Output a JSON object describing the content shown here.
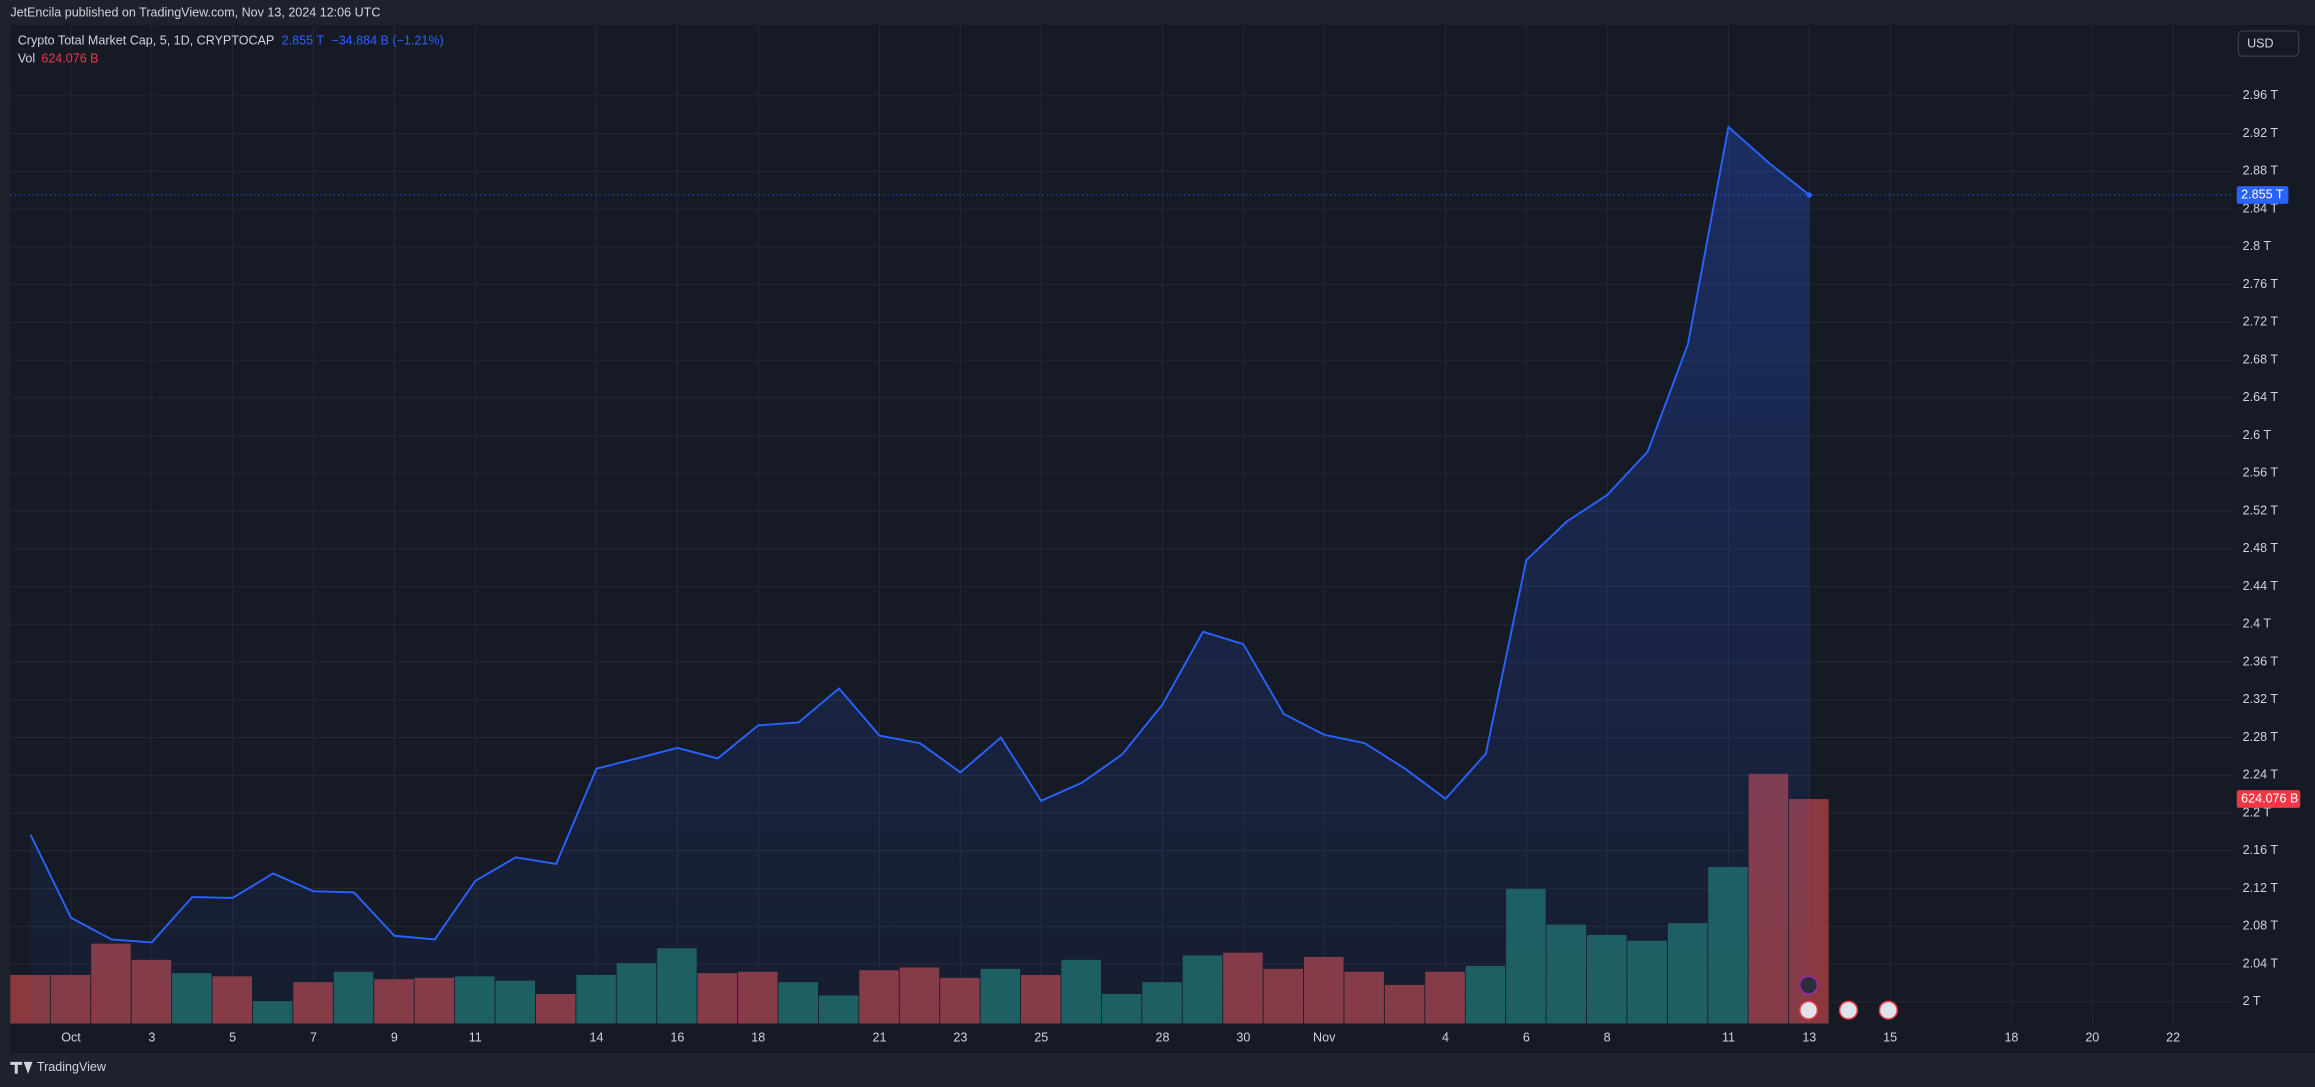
{
  "header": {
    "published": "JetEncila published on TradingView.com, Nov 13, 2024 12:06 UTC",
    "currency": "USD",
    "brand": "TradingView"
  },
  "chart_data": {
    "type": "line",
    "title": "Crypto Total Market Cap, 5, 1D, CRYPTOCAP",
    "last_value_label": "2.855 T",
    "change": "−34.884 B (−1.21%)",
    "x": [
      "2024-09-30",
      "2024-10-01",
      "2024-10-02",
      "2024-10-03",
      "2024-10-04",
      "2024-10-05",
      "2024-10-06",
      "2024-10-07",
      "2024-10-08",
      "2024-10-09",
      "2024-10-10",
      "2024-10-11",
      "2024-10-12",
      "2024-10-13",
      "2024-10-14",
      "2024-10-15",
      "2024-10-16",
      "2024-10-17",
      "2024-10-18",
      "2024-10-19",
      "2024-10-20",
      "2024-10-21",
      "2024-10-22",
      "2024-10-23",
      "2024-10-24",
      "2024-10-25",
      "2024-10-26",
      "2024-10-27",
      "2024-10-28",
      "2024-10-29",
      "2024-10-30",
      "2024-10-31",
      "2024-11-01",
      "2024-11-02",
      "2024-11-03",
      "2024-11-04",
      "2024-11-05",
      "2024-11-06",
      "2024-11-07",
      "2024-11-08",
      "2024-11-09",
      "2024-11-10",
      "2024-11-11",
      "2024-11-12",
      "2024-11-13"
    ],
    "series": [
      {
        "color": "#2962ff",
        "values": [
          2.177,
          2.089,
          2.066,
          2.063,
          2.111,
          2.11,
          2.136,
          2.117,
          2.116,
          2.07,
          2.066,
          2.128,
          2.153,
          2.146,
          2.247,
          2.258,
          2.269,
          2.258,
          2.293,
          2.296,
          2.332,
          2.282,
          2.274,
          2.243,
          2.28,
          2.213,
          2.232,
          2.262,
          2.315,
          2.392,
          2.379,
          2.305,
          2.283,
          2.274,
          2.247,
          2.215,
          2.263,
          2.468,
          2.509,
          2.537,
          2.583,
          2.697,
          2.927,
          2.889,
          2.855
        ]
      }
    ],
    "volume": {
      "name": "Vol",
      "last_value_label": "624.076 B",
      "values": [
        135,
        135,
        222,
        177,
        140,
        131,
        62,
        115,
        144,
        123,
        127,
        131,
        119,
        82,
        135,
        168,
        209,
        140,
        144,
        115,
        78,
        148,
        156,
        127,
        152,
        135,
        177,
        82,
        115,
        189,
        197,
        152,
        185,
        144,
        107,
        144,
        160,
        374,
        275,
        246,
        230,
        279,
        435,
        694,
        624.076
      ],
      "colors": [
        "#8a3a3f",
        "#8a3a3f",
        "#8a3a3f",
        "#8a3a3f",
        "#1d5f5b",
        "#8a3a3f",
        "#1d5f5b",
        "#8a3a3f",
        "#1d5f5b",
        "#8a3a3f",
        "#8a3a3f",
        "#1d5f5b",
        "#1d5f5b",
        "#8a3a3f",
        "#1d5f5b",
        "#1d5f5b",
        "#1d5f5b",
        "#8a3a3f",
        "#8a3a3f",
        "#1d5f5b",
        "#1d5f5b",
        "#8a3a3f",
        "#8a3a3f",
        "#8a3a3f",
        "#1d5f5b",
        "#8a3a3f",
        "#1d5f5b",
        "#1d5f5b",
        "#1d5f5b",
        "#1d5f5b",
        "#8a3a3f",
        "#8a3a3f",
        "#8a3a3f",
        "#8a3a3f",
        "#8a3a3f",
        "#8a3a3f",
        "#1d5f5b",
        "#1d5f5b",
        "#1d5f5b",
        "#1d5f5b",
        "#1d5f5b",
        "#1d5f5b",
        "#1d5f5b",
        "#8a3a3f",
        "#8a3a3f"
      ]
    },
    "xlim": [
      "2024-09-30",
      "2024-11-23"
    ],
    "xticks": [
      {
        "value": "2024-10-01",
        "label": "Oct"
      },
      {
        "value": "2024-10-03",
        "label": "3"
      },
      {
        "value": "2024-10-05",
        "label": "5"
      },
      {
        "value": "2024-10-07",
        "label": "7"
      },
      {
        "value": "2024-10-09",
        "label": "9"
      },
      {
        "value": "2024-10-11",
        "label": "11"
      },
      {
        "value": "2024-10-14",
        "label": "14"
      },
      {
        "value": "2024-10-16",
        "label": "16"
      },
      {
        "value": "2024-10-18",
        "label": "18"
      },
      {
        "value": "2024-10-21",
        "label": "21"
      },
      {
        "value": "2024-10-23",
        "label": "23"
      },
      {
        "value": "2024-10-25",
        "label": "25"
      },
      {
        "value": "2024-10-28",
        "label": "28"
      },
      {
        "value": "2024-10-30",
        "label": "30"
      },
      {
        "value": "2024-11-01",
        "label": "Nov"
      },
      {
        "value": "2024-11-04",
        "label": "4"
      },
      {
        "value": "2024-11-06",
        "label": "6"
      },
      {
        "value": "2024-11-08",
        "label": "8"
      },
      {
        "value": "2024-11-11",
        "label": "11"
      },
      {
        "value": "2024-11-13",
        "label": "13"
      },
      {
        "value": "2024-11-15",
        "label": "15"
      },
      {
        "value": "2024-11-18",
        "label": "18"
      },
      {
        "value": "2024-11-20",
        "label": "20"
      },
      {
        "value": "2024-11-22",
        "label": "22"
      }
    ],
    "ylim": [
      1.977,
      3.035
    ],
    "yticks": [
      {
        "value": 2,
        "label": "2 T"
      },
      {
        "value": 2.04,
        "label": "2.04 T"
      },
      {
        "value": 2.08,
        "label": "2.08 T"
      },
      {
        "value": 2.12,
        "label": "2.12 T"
      },
      {
        "value": 2.16,
        "label": "2.16 T"
      },
      {
        "value": 2.2,
        "label": "2.2 T"
      },
      {
        "value": 2.24,
        "label": "2.24 T"
      },
      {
        "value": 2.28,
        "label": "2.28 T"
      },
      {
        "value": 2.32,
        "label": "2.32 T"
      },
      {
        "value": 2.36,
        "label": "2.36 T"
      },
      {
        "value": 2.4,
        "label": "2.4 T"
      },
      {
        "value": 2.44,
        "label": "2.44 T"
      },
      {
        "value": 2.48,
        "label": "2.48 T"
      },
      {
        "value": 2.52,
        "label": "2.52 T"
      },
      {
        "value": 2.56,
        "label": "2.56 T"
      },
      {
        "value": 2.6,
        "label": "2.6 T"
      },
      {
        "value": 2.64,
        "label": "2.64 T"
      },
      {
        "value": 2.68,
        "label": "2.68 T"
      },
      {
        "value": 2.72,
        "label": "2.72 T"
      },
      {
        "value": 2.76,
        "label": "2.76 T"
      },
      {
        "value": 2.8,
        "label": "2.8 T"
      },
      {
        "value": 2.84,
        "label": "2.84 T"
      },
      {
        "value": 2.88,
        "label": "2.88 T"
      },
      {
        "value": 2.92,
        "label": "2.92 T"
      },
      {
        "value": 2.96,
        "label": "2.96 T"
      }
    ],
    "grid": true
  }
}
